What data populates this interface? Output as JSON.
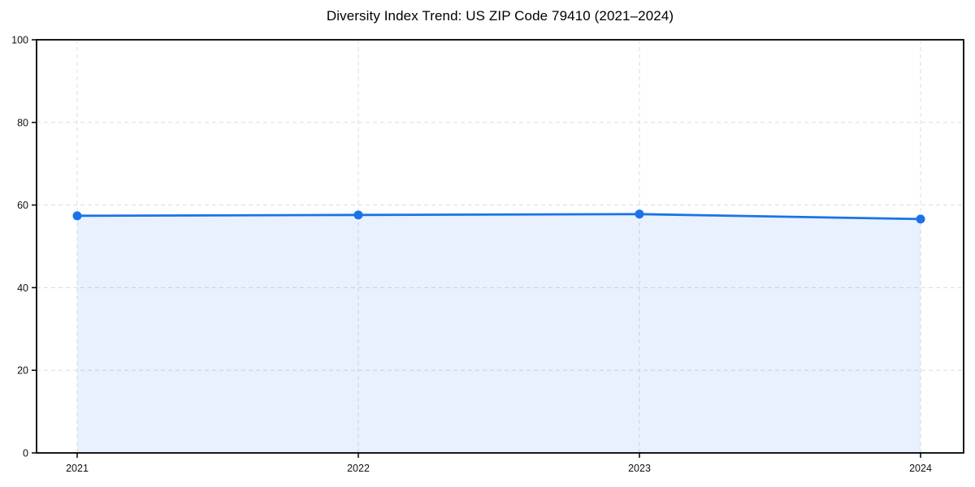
{
  "page": {
    "background": "#ffffff"
  },
  "chart_data": {
    "type": "area",
    "title": "Diversity Index Trend: US ZIP Code 79410 (2021–2024)",
    "x": [
      "2021",
      "2022",
      "2023",
      "2024"
    ],
    "values": [
      57.4,
      57.6,
      57.8,
      56.6
    ],
    "xlabel": "",
    "ylabel": "",
    "ylim": [
      0,
      100
    ],
    "yticks": [
      0,
      20,
      40,
      60,
      80,
      100
    ],
    "grid": true,
    "grid_style": "dashed",
    "legend_position": "none",
    "line_color": "#1a73e8",
    "marker_color": "#1a73e8",
    "fill_color": "#1a73e8",
    "fill_opacity": 0.1,
    "gridline_color": "#dcdcdc",
    "spine_color": "#000000",
    "tick_label_color": "#111111"
  }
}
